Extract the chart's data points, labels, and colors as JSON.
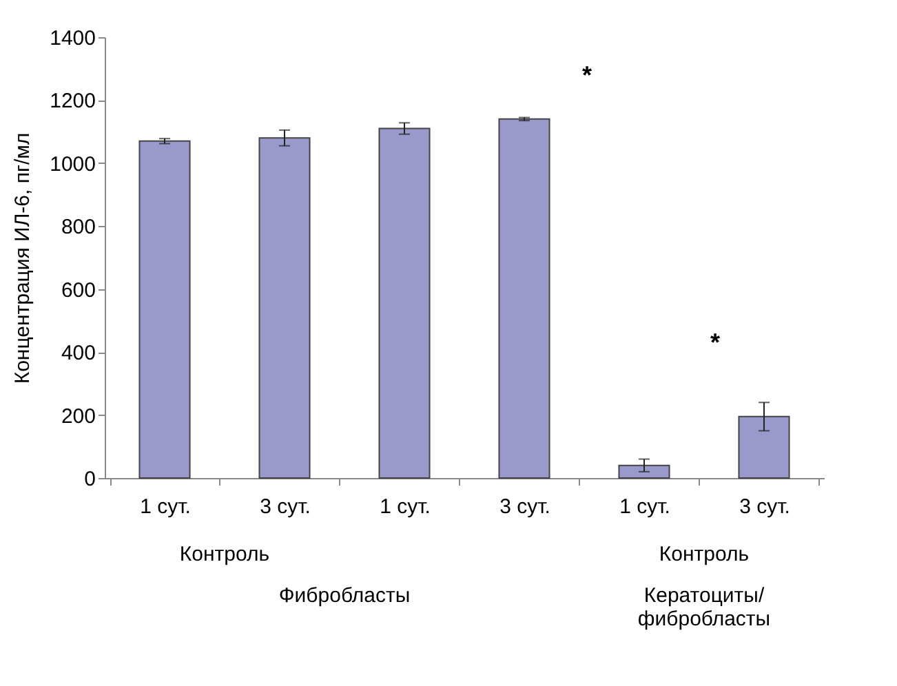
{
  "chart_data": {
    "type": "bar",
    "ylabel": "Концентрация ИЛ-6, пг/мл",
    "categories": [
      "1 сут.",
      "3 сут.",
      "1 сут.",
      "3 сут.",
      "1 сут.",
      "3 сут."
    ],
    "values": [
      1070,
      1080,
      1110,
      1140,
      40,
      195
    ],
    "errors": [
      8,
      25,
      18,
      5,
      20,
      45
    ],
    "color": "#9999cc",
    "ylim": [
      0,
      1400
    ],
    "yticks": [
      0,
      200,
      400,
      600,
      800,
      1000,
      1200,
      1400
    ],
    "grid": false,
    "annotations": [
      "*",
      "*",
      "Контроль",
      "Фибробласты",
      "Контроль",
      "Кератоциты/\nфибробласты"
    ]
  }
}
